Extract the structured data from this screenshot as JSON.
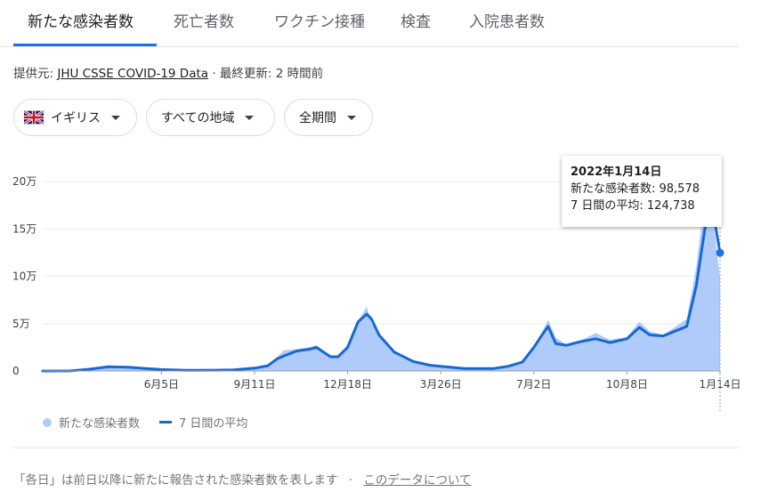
{
  "tabs": [
    {
      "label": "新たな感染者数",
      "active": true
    },
    {
      "label": "死亡者数",
      "active": false
    },
    {
      "label": "ワクチン接種",
      "active": false
    },
    {
      "label": "検査",
      "active": false
    },
    {
      "label": "入院患者数",
      "active": false
    }
  ],
  "source": {
    "prefix": "提供元: ",
    "link": "JHU CSSE COVID-19 Data",
    "separator": " · ",
    "updated": "最終更新: 2 時間前"
  },
  "filters": {
    "country": "イギリス",
    "region": "すべての地域",
    "period": "全期間"
  },
  "tooltip": {
    "date": "2022年1月14日",
    "cases_label": "新たな感染者数: 98,578",
    "avg_label": "7 日間の平均: 124,738"
  },
  "legend": {
    "daily": "新たな感染者数",
    "average": "7 日間の平均"
  },
  "footnote": {
    "text": "「各日」は前日以降に新たに報告された感染者数を表します",
    "separator": "·",
    "link": "このデータについて"
  },
  "colors": {
    "accent": "#1a73e8",
    "bar_fill": "#aecbfa",
    "avg_line": "#1967d2"
  },
  "chart_data": {
    "type": "area",
    "y_tick_labels": [
      "0",
      "5万",
      "10万",
      "15万",
      "20万"
    ],
    "y_ticks": [
      0,
      50000,
      100000,
      150000,
      200000
    ],
    "ylim": [
      0,
      200000
    ],
    "x_tick_labels": [
      "6月5日",
      "9月11日",
      "12月18日",
      "3月26日",
      "7月2日",
      "10月8日",
      "1月14日"
    ],
    "x_ticks": [
      "2020-06-05",
      "2020-09-11",
      "2020-12-18",
      "2021-03-26",
      "2021-07-02",
      "2021-10-08",
      "2022-01-14"
    ],
    "x_range": [
      "2020-02-01",
      "2022-01-14"
    ],
    "grid": true,
    "series": [
      {
        "name": "新たな感染者数",
        "points": [
          [
            "2020-02-01",
            0
          ],
          [
            "2020-03-01",
            100
          ],
          [
            "2020-03-20",
            2500
          ],
          [
            "2020-04-10",
            5500
          ],
          [
            "2020-05-01",
            4500
          ],
          [
            "2020-05-20",
            2500
          ],
          [
            "2020-06-05",
            1500
          ],
          [
            "2020-07-01",
            700
          ],
          [
            "2020-08-01",
            800
          ],
          [
            "2020-08-20",
            1200
          ],
          [
            "2020-09-11",
            3500
          ],
          [
            "2020-09-25",
            6500
          ],
          [
            "2020-10-05",
            15000
          ],
          [
            "2020-10-12",
            22000
          ],
          [
            "2020-10-25",
            23000
          ],
          [
            "2020-11-08",
            25000
          ],
          [
            "2020-11-15",
            27000
          ],
          [
            "2020-11-30",
            16000
          ],
          [
            "2020-12-08",
            15000
          ],
          [
            "2020-12-18",
            28000
          ],
          [
            "2020-12-29",
            53000
          ],
          [
            "2021-01-07",
            68000
          ],
          [
            "2021-01-12",
            50000
          ],
          [
            "2021-01-20",
            40000
          ],
          [
            "2021-02-05",
            20000
          ],
          [
            "2021-02-25",
            10000
          ],
          [
            "2021-03-15",
            6000
          ],
          [
            "2021-03-26",
            5000
          ],
          [
            "2021-04-20",
            2500
          ],
          [
            "2021-05-20",
            2500
          ],
          [
            "2021-06-05",
            5500
          ],
          [
            "2021-06-20",
            10000
          ],
          [
            "2021-07-02",
            27000
          ],
          [
            "2021-07-10",
            40000
          ],
          [
            "2021-07-17",
            54000
          ],
          [
            "2021-07-25",
            35000
          ],
          [
            "2021-08-05",
            28000
          ],
          [
            "2021-08-20",
            32000
          ],
          [
            "2021-09-05",
            40000
          ],
          [
            "2021-09-20",
            33000
          ],
          [
            "2021-10-08",
            36000
          ],
          [
            "2021-10-21",
            52000
          ],
          [
            "2021-11-01",
            42000
          ],
          [
            "2021-11-15",
            38000
          ],
          [
            "2021-11-30",
            48000
          ],
          [
            "2021-12-10",
            55000
          ],
          [
            "2021-12-20",
            110000
          ],
          [
            "2021-12-29",
            183000
          ],
          [
            "2022-01-04",
            218000
          ],
          [
            "2022-01-08",
            150000
          ],
          [
            "2022-01-14",
            98578
          ]
        ]
      },
      {
        "name": "7 日間の平均",
        "points": [
          [
            "2020-02-01",
            0
          ],
          [
            "2020-03-01",
            100
          ],
          [
            "2020-03-20",
            1800
          ],
          [
            "2020-04-10",
            4500
          ],
          [
            "2020-05-01",
            4000
          ],
          [
            "2020-05-20",
            2600
          ],
          [
            "2020-06-05",
            1500
          ],
          [
            "2020-07-01",
            700
          ],
          [
            "2020-08-01",
            800
          ],
          [
            "2020-08-20",
            1100
          ],
          [
            "2020-09-11",
            3000
          ],
          [
            "2020-09-25",
            5500
          ],
          [
            "2020-10-05",
            13000
          ],
          [
            "2020-10-12",
            16000
          ],
          [
            "2020-10-25",
            21000
          ],
          [
            "2020-11-08",
            23000
          ],
          [
            "2020-11-15",
            25000
          ],
          [
            "2020-11-30",
            15000
          ],
          [
            "2020-12-08",
            15000
          ],
          [
            "2020-12-18",
            25000
          ],
          [
            "2020-12-29",
            52000
          ],
          [
            "2021-01-07",
            60000
          ],
          [
            "2021-01-12",
            55000
          ],
          [
            "2021-01-20",
            38000
          ],
          [
            "2021-02-05",
            20000
          ],
          [
            "2021-02-25",
            10000
          ],
          [
            "2021-03-15",
            6000
          ],
          [
            "2021-03-26",
            5000
          ],
          [
            "2021-04-20",
            2500
          ],
          [
            "2021-05-20",
            2500
          ],
          [
            "2021-06-05",
            5000
          ],
          [
            "2021-06-20",
            9500
          ],
          [
            "2021-07-02",
            25000
          ],
          [
            "2021-07-10",
            37000
          ],
          [
            "2021-07-17",
            47000
          ],
          [
            "2021-07-25",
            29000
          ],
          [
            "2021-08-05",
            27000
          ],
          [
            "2021-08-20",
            31000
          ],
          [
            "2021-09-05",
            34000
          ],
          [
            "2021-09-20",
            30000
          ],
          [
            "2021-10-08",
            34000
          ],
          [
            "2021-10-21",
            46000
          ],
          [
            "2021-11-01",
            38000
          ],
          [
            "2021-11-15",
            37000
          ],
          [
            "2021-11-30",
            43000
          ],
          [
            "2021-12-10",
            47000
          ],
          [
            "2021-12-20",
            90000
          ],
          [
            "2021-12-29",
            150000
          ],
          [
            "2022-01-04",
            170000
          ],
          [
            "2022-01-08",
            160000
          ],
          [
            "2022-01-14",
            124738
          ]
        ]
      }
    ],
    "highlight": {
      "x": "2022-01-14",
      "y": 124738
    }
  }
}
